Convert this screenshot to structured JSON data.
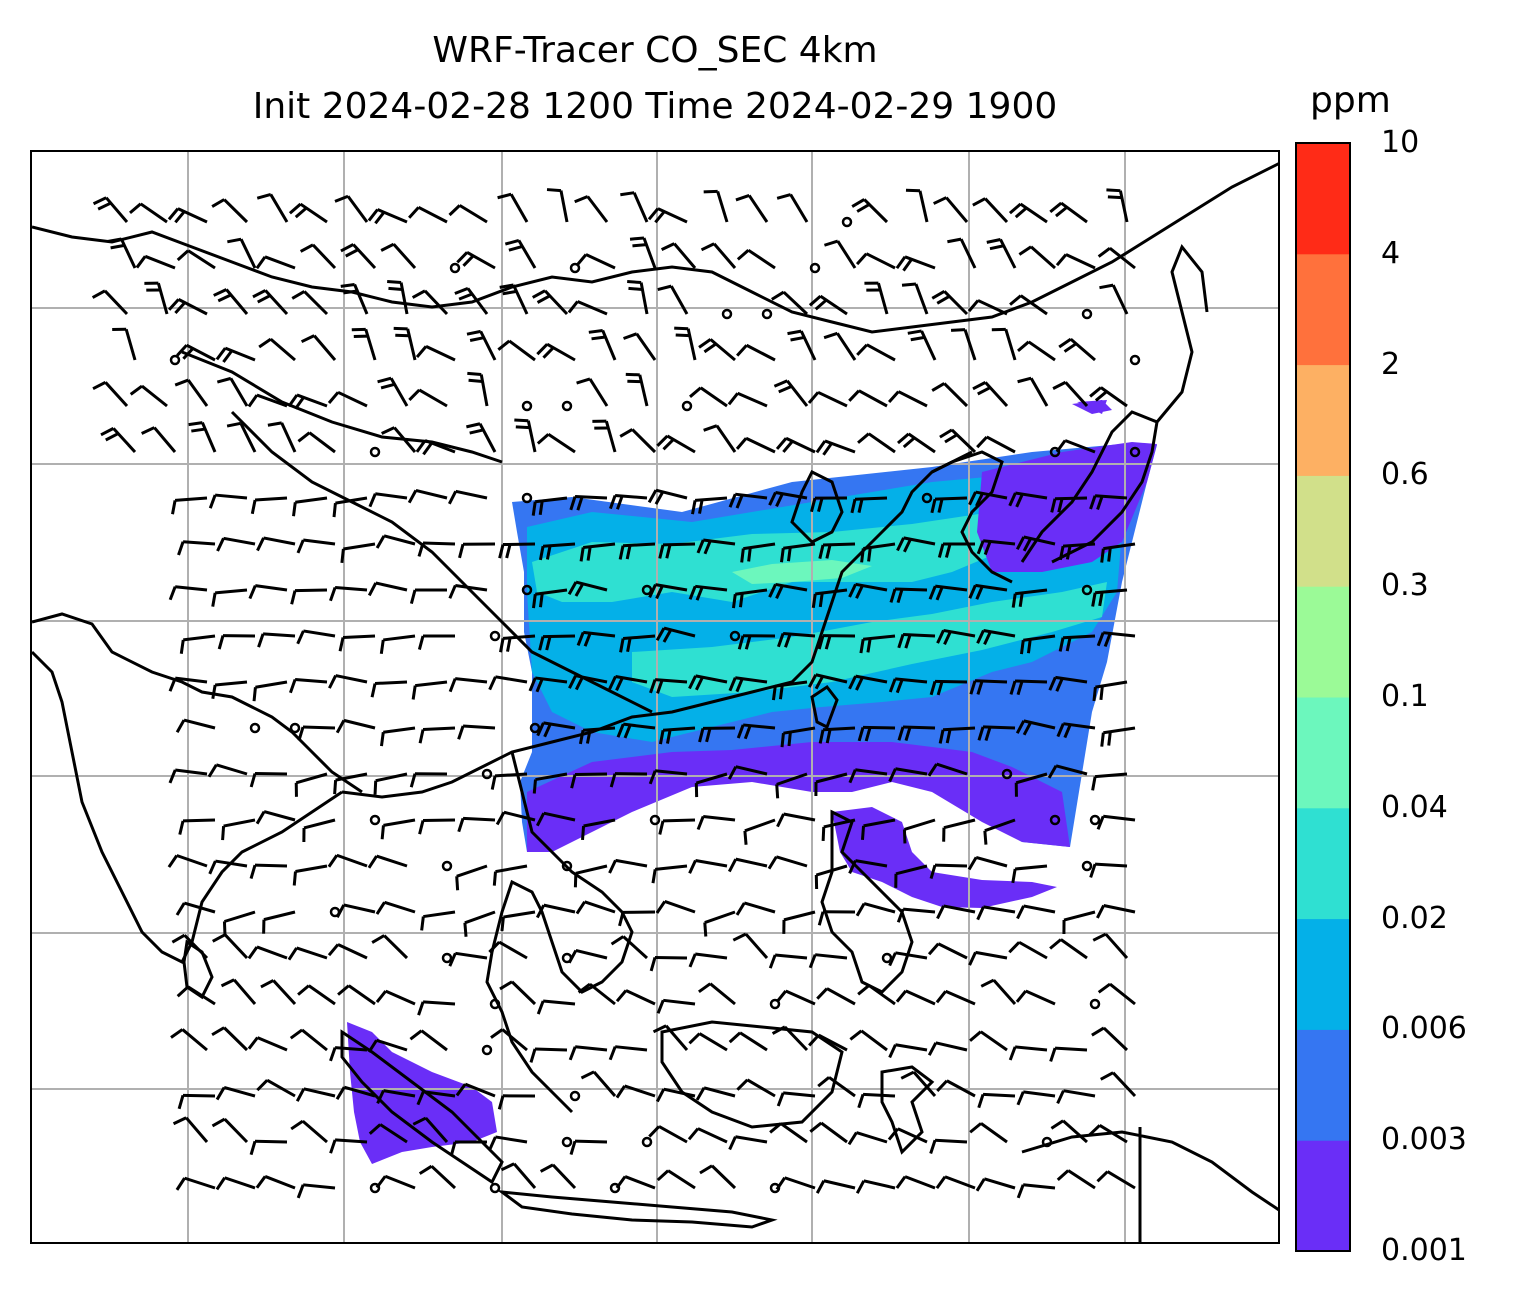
{
  "title_line1": "WRF-Tracer CO_SEC 4km",
  "title_line2": "Init 2024-02-28 1200 Time 2024-02-29 1900",
  "colorbar": {
    "unit": "ppm",
    "ticks": [
      "10",
      "4",
      "2",
      "0.6",
      "0.3",
      "0.1",
      "0.04",
      "0.02",
      "0.006",
      "0.003",
      "0.001"
    ],
    "colors_bottom_to_top": [
      "#6a2ef7",
      "#3576f2",
      "#04b0e8",
      "#2fe0d2",
      "#6cf7bd",
      "#9bfa97",
      "#d1e08a",
      "#fdb063",
      "#ff713c",
      "#ff2b17"
    ]
  },
  "map": {
    "gridlines": true,
    "gridline_color": "#b0b0b0",
    "coastline_color": "#000000",
    "wind_barb_color": "#000000"
  }
}
